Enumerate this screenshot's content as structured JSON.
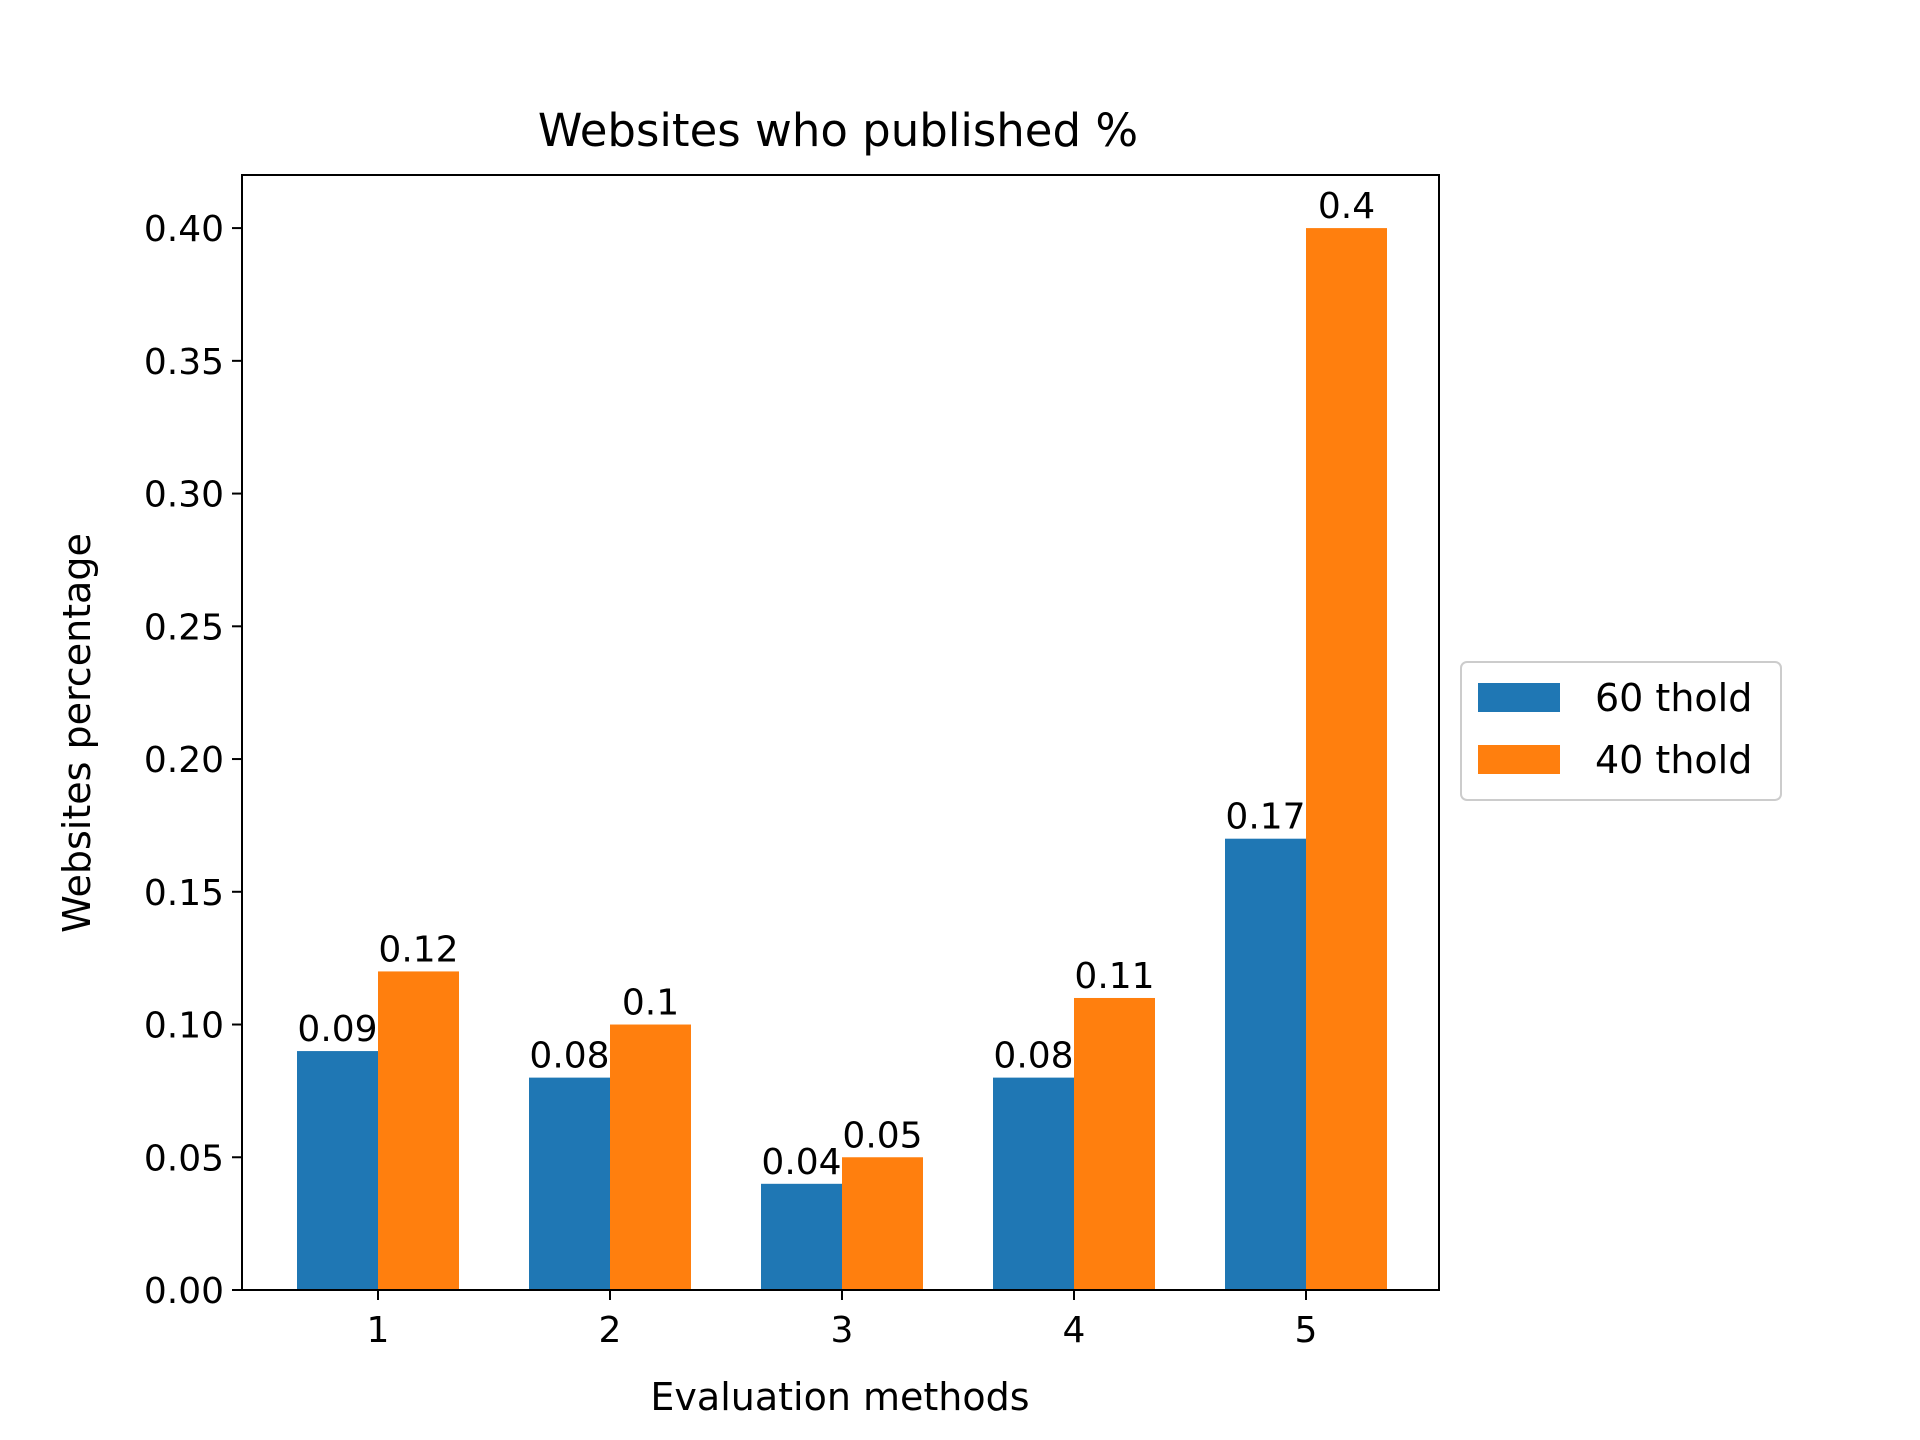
{
  "chart_data": {
    "type": "bar",
    "title": "Websites who published %",
    "xlabel": "Evaluation methods",
    "ylabel": "Websites percentage",
    "categories": [
      "1",
      "2",
      "3",
      "4",
      "5"
    ],
    "series": [
      {
        "name": "60 thold",
        "color": "#1f77b4",
        "values": [
          0.09,
          0.08,
          0.04,
          0.08,
          0.17
        ],
        "labels": [
          "0.09",
          "0.08",
          "0.04",
          "0.08",
          "0.17"
        ]
      },
      {
        "name": "40 thold",
        "color": "#ff7f0e",
        "values": [
          0.12,
          0.1,
          0.05,
          0.11,
          0.4
        ],
        "labels": [
          "0.12",
          "0.1",
          "0.05",
          "0.11",
          "0.4"
        ]
      }
    ],
    "ylim": [
      0,
      0.42
    ],
    "yticks": [
      0.0,
      0.05,
      0.1,
      0.15,
      0.2,
      0.25,
      0.3,
      0.35,
      0.4
    ],
    "ytick_labels": [
      "0.00",
      "0.05",
      "0.10",
      "0.15",
      "0.20",
      "0.25",
      "0.30",
      "0.35",
      "0.40"
    ],
    "grid": false,
    "legend_position": "outside-right"
  }
}
